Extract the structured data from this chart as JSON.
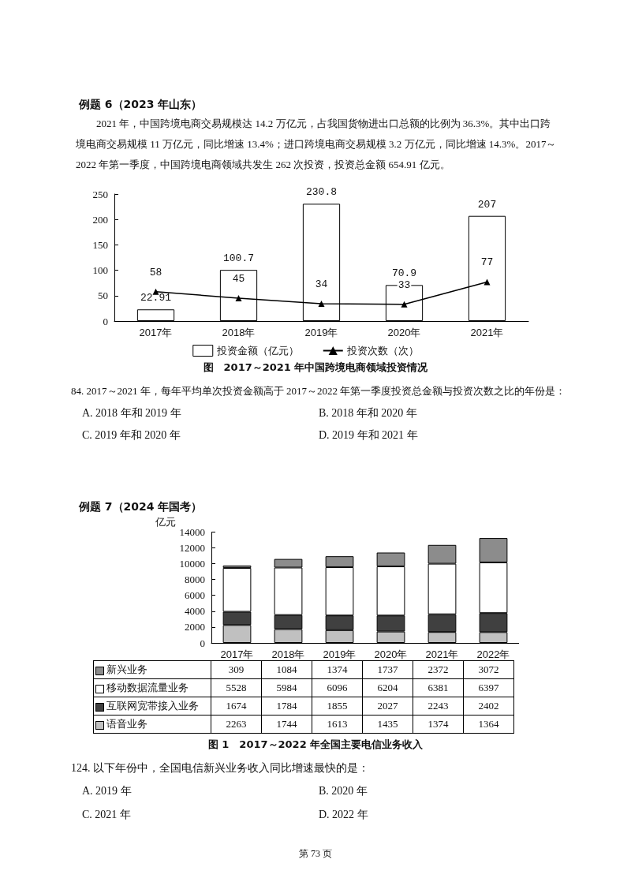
{
  "chart_data": [
    {
      "type": "bar",
      "title": "图　2017～2021 年中国跨境电商领域投资情况",
      "annotations": [
        "例题 6（2023 年山东）",
        "2021 年，中国跨境电商交易规模达 14.2 万亿元，占我国货物进出口总额的比例为 36.3%。其中出口跨境电商交易规模 11 万亿元，同比增速 13.4%；进口跨境电商交易规模 3.2 万亿元，同比增速 14.3%。2017～2022 年第一季度，中国跨境电商领域共发生 262 次投资，投资总金额 654.91 亿元。",
        "84. 2017～2021 年，每年平均单次投资金额高于 2017～2022 年第一季度投资总金额与投资次数之比的年份是：",
        "A. 2018 年和 2019 年",
        "B. 2018 年和 2020 年",
        "C. 2019 年和 2020 年",
        "D. 2019 年和 2021 年"
      ],
      "categories": [
        "2017年",
        "2018年",
        "2019年",
        "2020年",
        "2021年"
      ],
      "series": [
        {
          "name": "投资金额（亿元）",
          "color": "#ffffff",
          "values": [
            22.91,
            100.7,
            230.8,
            70.9,
            207
          ]
        },
        {
          "name": "投资次数（次）",
          "type": "line",
          "color": "#000000",
          "values": [
            58,
            45,
            34,
            33,
            77
          ]
        }
      ],
      "ylim": [
        0,
        250
      ],
      "yticks": [
        0,
        50,
        100,
        150,
        200,
        250
      ],
      "grid": false,
      "legend": "bottom",
      "marker": "triangle",
      "data_labels": true
    },
    {
      "type": "bar",
      "title": "图 1　2017～2022 年全国主要电信业务收入",
      "ylabel": "亿元",
      "annotations": [
        "例题 7（2024 年国考）",
        "124. 以下年份中，全国电信新兴业务收入同比增速最快的是：",
        "A. 2019 年",
        "B. 2020 年",
        "C. 2021 年",
        "D. 2022 年",
        "第 73 页"
      ],
      "categories": [
        "2017年",
        "2018年",
        "2019年",
        "2020年",
        "2021年",
        "2022年"
      ],
      "stacked": true,
      "series": [
        {
          "name": "语音业务",
          "color": "#c0c0c0",
          "values": [
            2263,
            1744,
            1613,
            1435,
            1374,
            1364
          ]
        },
        {
          "name": "互联网宽带接入业务",
          "color": "#404040",
          "values": [
            1674,
            1784,
            1855,
            2027,
            2243,
            2402
          ]
        },
        {
          "name": "移动数据流量业务",
          "color": "#ffffff",
          "values": [
            5528,
            5984,
            6096,
            6204,
            6381,
            6397
          ]
        },
        {
          "name": "新兴业务",
          "color": "#8c8c8c",
          "values": [
            309,
            1084,
            1374,
            1737,
            2372,
            3072
          ]
        }
      ],
      "ylim": [
        0,
        14000
      ],
      "yticks": [
        0,
        2000,
        4000,
        6000,
        8000,
        10000,
        12000,
        14000
      ],
      "grid": false,
      "legend": "bottom left",
      "data_labels": true
    }
  ]
}
